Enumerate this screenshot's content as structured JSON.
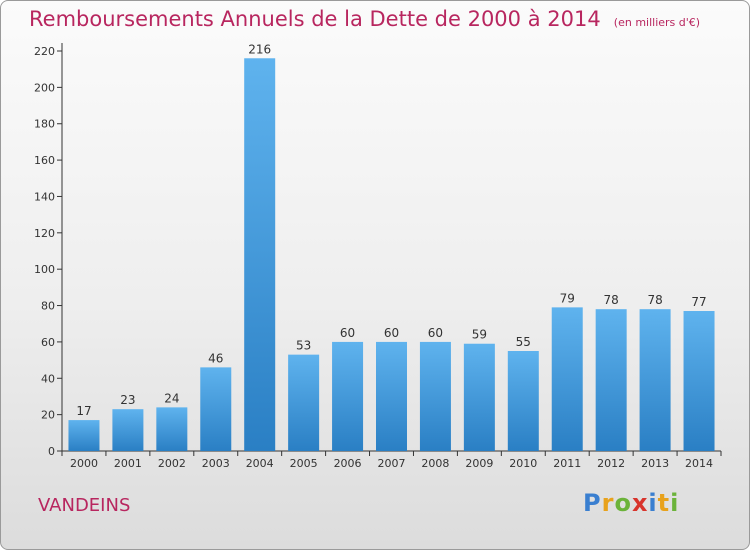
{
  "title": "Remboursements Annuels de la Dette de 2000 à 2014",
  "unit_note": "(en milliers d'€)",
  "commune": "VANDEINS",
  "logo": {
    "text": "Proxiti",
    "letters": [
      {
        "ch": "P",
        "color": "#3a7fd0"
      },
      {
        "ch": "r",
        "color": "#e8a21c"
      },
      {
        "ch": "o",
        "color": "#6bb33a"
      },
      {
        "ch": "x",
        "color": "#d8342c"
      },
      {
        "ch": "i",
        "color": "#3a7fd0"
      },
      {
        "ch": "t",
        "color": "#e8a21c"
      },
      {
        "ch": "i",
        "color": "#6bb33a"
      }
    ]
  },
  "chart_data": {
    "type": "bar",
    "categories": [
      "2000",
      "2001",
      "2002",
      "2003",
      "2004",
      "2005",
      "2006",
      "2007",
      "2008",
      "2009",
      "2010",
      "2011",
      "2012",
      "2013",
      "2014"
    ],
    "values": [
      17,
      23,
      24,
      46,
      216,
      53,
      60,
      60,
      60,
      59,
      55,
      79,
      78,
      78,
      77
    ],
    "ylim": [
      0,
      220
    ],
    "yticks": [
      0,
      20,
      40,
      60,
      80,
      100,
      120,
      140,
      160,
      180,
      200,
      220
    ],
    "grid": false,
    "colors": {
      "bar_top": "#5fb3ee",
      "bar_bottom": "#2a7fc4",
      "axis": "#333333",
      "text": "#333333"
    }
  }
}
